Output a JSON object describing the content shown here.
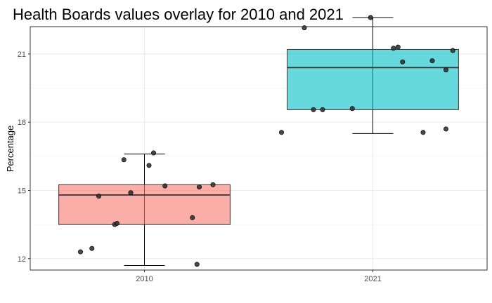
{
  "chart_data": {
    "type": "boxplot",
    "title": "Health Boards values overlay for 2010 and 2021",
    "xlabel": "",
    "ylabel": "Percentage",
    "categories": [
      "2010",
      "2021"
    ],
    "ylim": [
      11.5,
      22.2
    ],
    "yticks": [
      12,
      15,
      18,
      21
    ],
    "grid": true,
    "legend": "none",
    "boxes": [
      {
        "category": "2010",
        "fill": "#F8766D",
        "whisker_low": 11.7,
        "q1": 13.5,
        "median": 14.8,
        "q3": 15.25,
        "whisker_high": 16.6,
        "points": [
          {
            "x": -0.28,
            "y": 12.3
          },
          {
            "x": -0.23,
            "y": 12.45
          },
          {
            "x": -0.2,
            "y": 14.75
          },
          {
            "x": -0.13,
            "y": 13.5
          },
          {
            "x": -0.12,
            "y": 13.55
          },
          {
            "x": -0.09,
            "y": 16.35
          },
          {
            "x": -0.06,
            "y": 14.9
          },
          {
            "x": 0.02,
            "y": 16.1
          },
          {
            "x": 0.04,
            "y": 16.65
          },
          {
            "x": 0.09,
            "y": 15.2
          },
          {
            "x": 0.21,
            "y": 13.8
          },
          {
            "x": 0.23,
            "y": 11.75
          },
          {
            "x": 0.24,
            "y": 15.15
          },
          {
            "x": 0.3,
            "y": 15.25
          }
        ]
      },
      {
        "category": "2021",
        "fill": "#00BFC4",
        "whisker_low": 17.5,
        "q1": 18.55,
        "median": 20.4,
        "q3": 21.2,
        "whisker_high": 22.6,
        "points": [
          {
            "x": -0.4,
            "y": 17.55
          },
          {
            "x": -0.3,
            "y": 22.15
          },
          {
            "x": -0.26,
            "y": 18.55
          },
          {
            "x": -0.22,
            "y": 18.55
          },
          {
            "x": -0.09,
            "y": 18.6
          },
          {
            "x": -0.01,
            "y": 22.6
          },
          {
            "x": 0.09,
            "y": 21.25
          },
          {
            "x": 0.11,
            "y": 21.3
          },
          {
            "x": 0.13,
            "y": 20.65
          },
          {
            "x": 0.22,
            "y": 17.55
          },
          {
            "x": 0.26,
            "y": 20.7
          },
          {
            "x": 0.32,
            "y": 20.3
          },
          {
            "x": 0.32,
            "y": 17.7
          },
          {
            "x": 0.35,
            "y": 21.15
          }
        ]
      }
    ]
  }
}
